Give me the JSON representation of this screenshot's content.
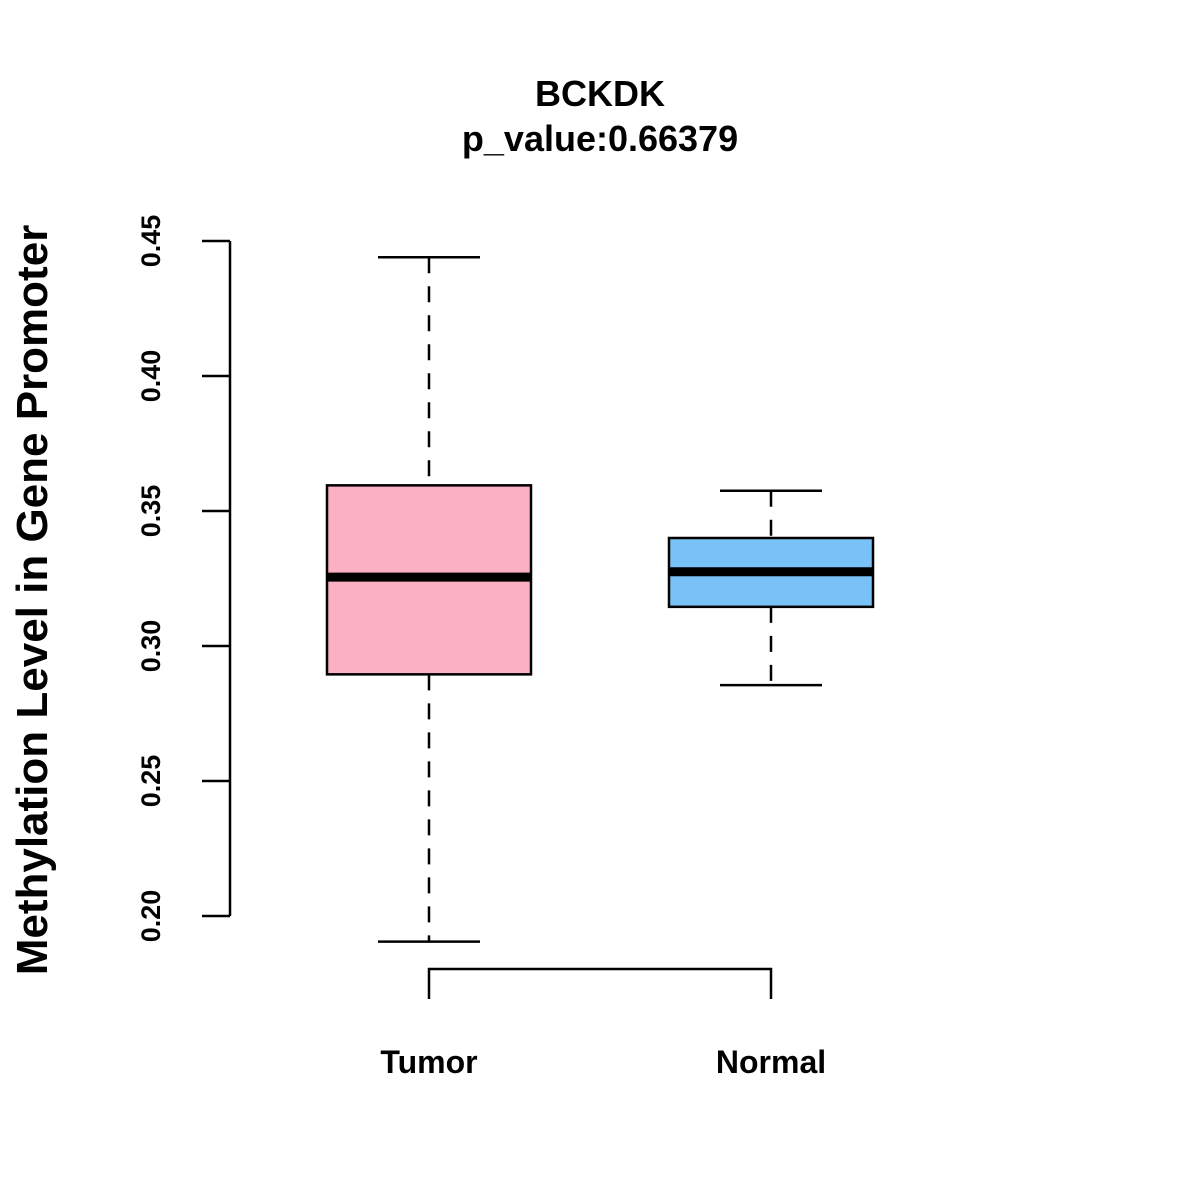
{
  "chart_data": {
    "type": "box",
    "title": "BCKDK",
    "subtitle": "p_value:0.66379",
    "ylabel": "Methylation Level in Gene Promoter",
    "xlabel": "",
    "ylim": [
      0.2,
      0.45
    ],
    "yticks": [
      "0.20",
      "0.25",
      "0.30",
      "0.35",
      "0.40",
      "0.45"
    ],
    "categories": [
      "Tumor",
      "Normal"
    ],
    "boxes": [
      {
        "name": "Tumor",
        "min": 0.1905,
        "q1": 0.2895,
        "median": 0.3255,
        "q3": 0.3595,
        "max": 0.444,
        "color": "#FBB1C3"
      },
      {
        "name": "Normal",
        "min": 0.2855,
        "q1": 0.3145,
        "median": 0.3275,
        "q3": 0.34,
        "max": 0.3575,
        "color": "#79C2F7"
      }
    ],
    "comparison_bracket": {
      "between": [
        "Tumor",
        "Normal"
      ],
      "label": ""
    },
    "grid": false,
    "legend": "none"
  }
}
